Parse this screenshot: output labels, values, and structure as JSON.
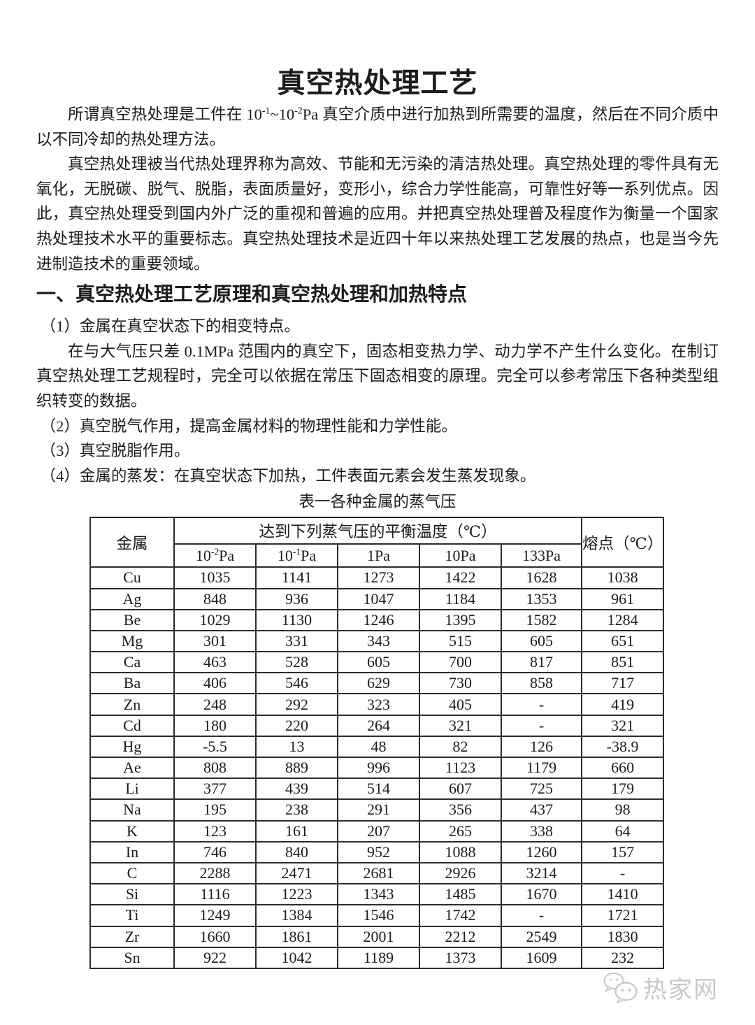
{
  "page": {
    "title": "真空热处理工艺"
  },
  "intro": {
    "seg1": "所谓真空热处理是工件在 10",
    "sup1": "-1",
    "seg2": "~10",
    "sup2": "-2",
    "seg3": "Pa 真空介质中进行加热到所需要的温度，然后在不同介质中以不同冷却的热处理方法。"
  },
  "overview": "真空热处理被当代热处理界称为高效、节能和无污染的清洁热处理。真空热处理的零件具有无氧化，无脱碳、脱气、脱脂，表面质量好，变形小，综合力学性能高，可靠性好等一系列优点。因此，真空热处理受到国内外广泛的重视和普遍的应用。并把真空热处理普及程度作为衡量一个国家热处理技术水平的重要标志。真空热处理技术是近四十年以来热处理工艺发展的热点，也是当今先进制造技术的重要领域。",
  "section1": {
    "heading": "一、真空热处理工艺原理和真空热处理和加热特点",
    "item1": "（1）金属在真空状态下的相变特点。",
    "item1_detail": "在与大气压只差 0.1MPa 范围内的真空下，固态相变热力学、动力学不产生什么变化。在制订真空热处理工艺规程时，完全可以依据在常压下固态相变的原理。完全可以参考常压下各种类型组织转变的数据。",
    "item2": "（2）真空脱气作用，提高金属材料的物理性能和力学性能。",
    "item3": "（3）真空脱脂作用。",
    "item4": "（4）金属的蒸发：在真空状态下加热，工件表面元素会发生蒸发现象。"
  },
  "table": {
    "caption": "表一各种金属的蒸气压",
    "col_metal": "金属",
    "col_group": "达到下列蒸气压的平衡温度（℃）",
    "col_melting": "熔点（℃）",
    "pressure_headers": [
      {
        "base": "10",
        "exp": "-2",
        "unit": "Pa"
      },
      {
        "base": "10",
        "exp": "-1",
        "unit": "Pa"
      },
      {
        "label": "1Pa"
      },
      {
        "label": "10Pa"
      },
      {
        "label": "133Pa"
      }
    ],
    "rows": [
      [
        "Cu",
        "1035",
        "1141",
        "1273",
        "1422",
        "1628",
        "1038"
      ],
      [
        "Ag",
        "848",
        "936",
        "1047",
        "1184",
        "1353",
        "961"
      ],
      [
        "Be",
        "1029",
        "1130",
        "1246",
        "1395",
        "1582",
        "1284"
      ],
      [
        "Mg",
        "301",
        "331",
        "343",
        "515",
        "605",
        "651"
      ],
      [
        "Ca",
        "463",
        "528",
        "605",
        "700",
        "817",
        "851"
      ],
      [
        "Ba",
        "406",
        "546",
        "629",
        "730",
        "858",
        "717"
      ],
      [
        "Zn",
        "248",
        "292",
        "323",
        "405",
        "-",
        "419"
      ],
      [
        "Cd",
        "180",
        "220",
        "264",
        "321",
        "-",
        "321"
      ],
      [
        "Hg",
        "-5.5",
        "13",
        "48",
        "82",
        "126",
        "-38.9"
      ],
      [
        "Ae",
        "808",
        "889",
        "996",
        "1123",
        "1179",
        "660"
      ],
      [
        "Li",
        "377",
        "439",
        "514",
        "607",
        "725",
        "179"
      ],
      [
        "Na",
        "195",
        "238",
        "291",
        "356",
        "437",
        "98"
      ],
      [
        "K",
        "123",
        "161",
        "207",
        "265",
        "338",
        "64"
      ],
      [
        "In",
        "746",
        "840",
        "952",
        "1088",
        "1260",
        "157"
      ],
      [
        "C",
        "2288",
        "2471",
        "2681",
        "2926",
        "3214",
        "-"
      ],
      [
        "Si",
        "1116",
        "1223",
        "1343",
        "1485",
        "1670",
        "1410"
      ],
      [
        "Ti",
        "1249",
        "1384",
        "1546",
        "1742",
        "-",
        "1721"
      ],
      [
        "Zr",
        "1660",
        "1861",
        "2001",
        "2212",
        "2549",
        "1830"
      ],
      [
        "Sn",
        "922",
        "1042",
        "1189",
        "1373",
        "1609",
        "232"
      ]
    ]
  },
  "watermark": {
    "text": "热家网",
    "icon": "wechat-chat-bubbles-icon",
    "color": "#c8c8c8"
  }
}
